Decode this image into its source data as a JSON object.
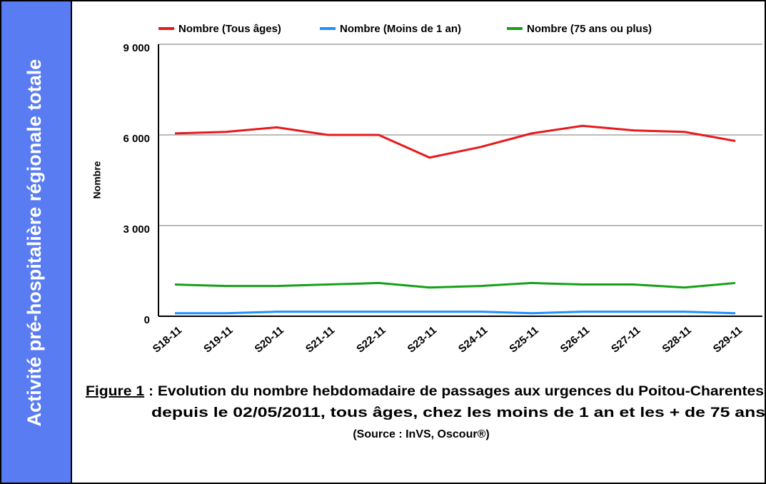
{
  "sidebar": "Activité pré-hospitalière régionale totale",
  "caption": {
    "figure": "Figure 1",
    "line1": " : Evolution du nombre hebdomadaire de passages aux urgences du Poitou-Charentes",
    "line2": "depuis le 02/05/2011, tous âges, chez les moins de 1 an et les  + de 75 ans",
    "line3": "(Source : InVS, Oscour®)"
  },
  "chart_data": {
    "type": "line",
    "ylabel": "Nombre",
    "categories": [
      "S18-11",
      "S19-11",
      "S20-11",
      "S21-11",
      "S22-11",
      "S23-11",
      "S24-11",
      "S25-11",
      "S26-11",
      "S27-11",
      "S28-11",
      "S29-11"
    ],
    "series": [
      {
        "name": "Nombre (Tous âges)",
        "color": "#e8191b",
        "values": [
          6050,
          6100,
          6250,
          6000,
          6000,
          5250,
          5600,
          6050,
          6300,
          6150,
          6100,
          5800
        ]
      },
      {
        "name": "Nombre (Moins de 1 an)",
        "color": "#1e90ff",
        "values": [
          100,
          100,
          150,
          150,
          150,
          150,
          150,
          100,
          150,
          150,
          150,
          100
        ]
      },
      {
        "name": "Nombre (75 ans ou plus)",
        "color": "#16a016",
        "values": [
          1050,
          1000,
          1000,
          1050,
          1100,
          950,
          1000,
          1100,
          1050,
          1050,
          950,
          1100
        ]
      }
    ],
    "ylim": [
      0,
      9000
    ],
    "yticks": [
      {
        "value": 0,
        "label": "0"
      },
      {
        "value": 3000,
        "label": "3 000"
      },
      {
        "value": 6000,
        "label": "6 000"
      },
      {
        "value": 9000,
        "label": "9 000"
      }
    ],
    "grid": true,
    "legend": "top"
  }
}
